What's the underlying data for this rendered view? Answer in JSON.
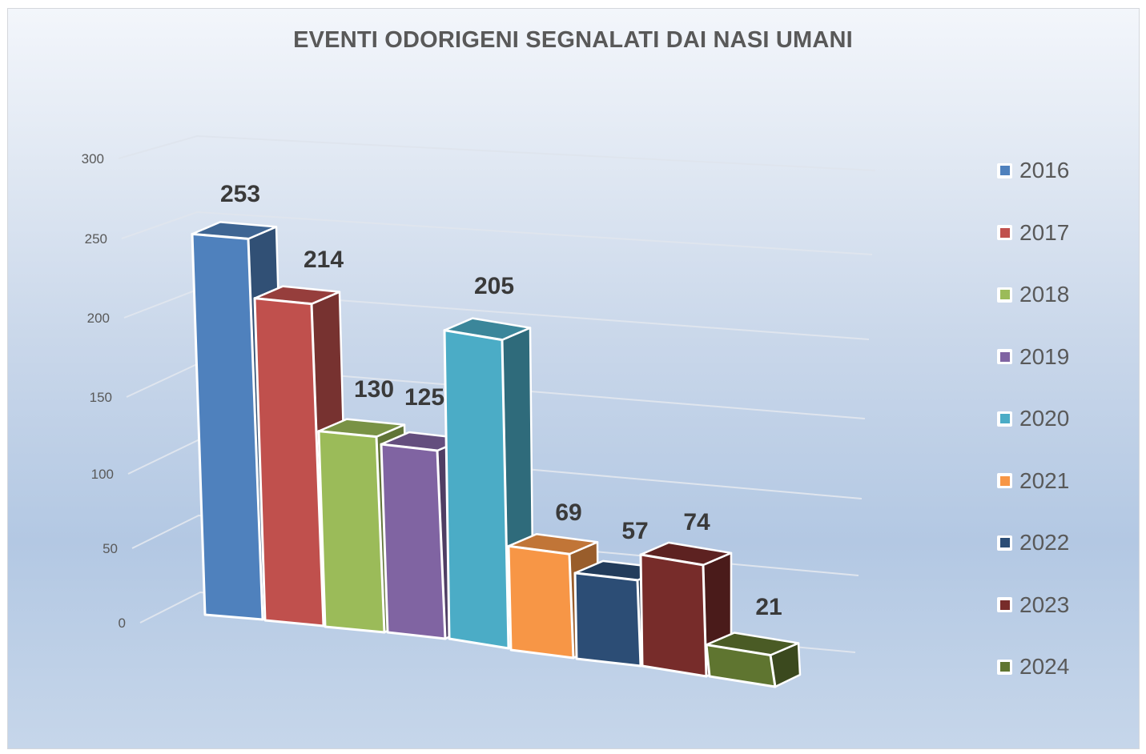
{
  "chart_data": {
    "type": "bar",
    "title": "EVENTI  ODORIGENI SEGNALATI DAI NASI UMANI",
    "style": "3d-column",
    "categories": [
      "2016",
      "2017",
      "2018",
      "2019",
      "2020",
      "2021",
      "2022",
      "2023",
      "2024"
    ],
    "values": [
      253,
      214,
      130,
      125,
      205,
      69,
      57,
      74,
      21
    ],
    "series": [
      {
        "name": "2016",
        "value": 253,
        "color": "#4F81BD"
      },
      {
        "name": "2017",
        "value": 214,
        "color": "#C0504D"
      },
      {
        "name": "2018",
        "value": 130,
        "color": "#9BBB59"
      },
      {
        "name": "2019",
        "value": 125,
        "color": "#8064A2"
      },
      {
        "name": "2020",
        "value": 205,
        "color": "#4BACC6"
      },
      {
        "name": "2021",
        "value": 69,
        "color": "#F79646"
      },
      {
        "name": "2022",
        "value": 57,
        "color": "#2C4D75"
      },
      {
        "name": "2023",
        "value": 74,
        "color": "#772C2A"
      },
      {
        "name": "2024",
        "value": 21,
        "color": "#5F7530"
      }
    ],
    "xlabel": "",
    "ylabel": "",
    "y_ticks": [
      "0",
      "50",
      "100",
      "150",
      "200",
      "250",
      "300"
    ],
    "ylim": [
      0,
      300
    ],
    "grid": true,
    "legend_position": "right"
  },
  "title": "EVENTI  ODORIGENI SEGNALATI DAI NASI UMANI",
  "legend": {
    "items": [
      {
        "label": "2016",
        "color": "#4F81BD"
      },
      {
        "label": "2017",
        "color": "#C0504D"
      },
      {
        "label": "2018",
        "color": "#9BBB59"
      },
      {
        "label": "2019",
        "color": "#8064A2"
      },
      {
        "label": "2020",
        "color": "#4BACC6"
      },
      {
        "label": "2021",
        "color": "#F79646"
      },
      {
        "label": "2022",
        "color": "#2C4D75"
      },
      {
        "label": "2023",
        "color": "#772C2A"
      },
      {
        "label": "2024",
        "color": "#5F7530"
      }
    ]
  }
}
